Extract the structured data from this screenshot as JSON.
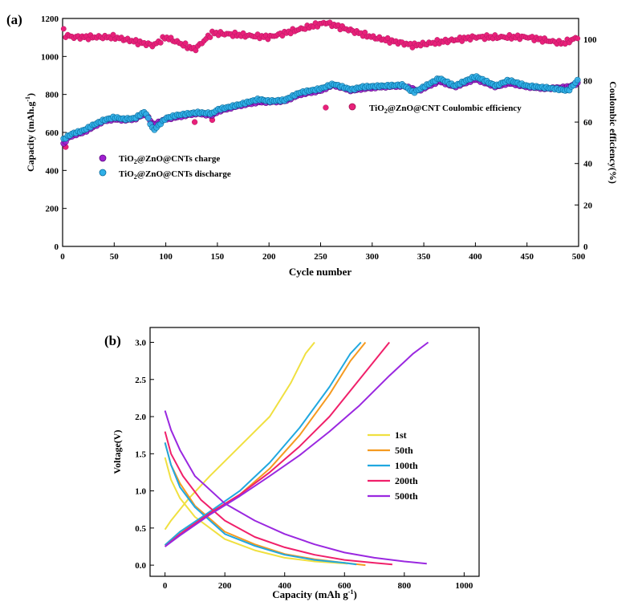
{
  "chart_data": [
    {
      "panel_label": "(a)",
      "type": "scatter",
      "xlabel": "Cycle number",
      "ylabel": "Capacity (mAh.g",
      "ylabel_sup": "-1",
      "ylabel_end": ")",
      "y2label": "Coulombic efficiency(%)",
      "xlim": [
        0,
        500
      ],
      "ylim": [
        0,
        1200
      ],
      "y2lim": [
        0,
        110
      ],
      "xticks": [
        0,
        50,
        100,
        150,
        200,
        250,
        300,
        350,
        400,
        450,
        500
      ],
      "yticks": [
        0,
        200,
        400,
        600,
        800,
        1000,
        1200
      ],
      "y2ticks": [
        0,
        20,
        40,
        60,
        80,
        100
      ],
      "grid": false,
      "series": [
        {
          "name": "TiO2@ZnO@CNTs charge",
          "name_parts": [
            "TiO",
            "2",
            "@ZnO@CNTs charge"
          ],
          "axis": "left",
          "color": "#a020d0",
          "points": [
            [
              0,
              530
            ],
            [
              5,
              570
            ],
            [
              10,
              585
            ],
            [
              20,
              600
            ],
            [
              30,
              630
            ],
            [
              40,
              660
            ],
            [
              50,
              670
            ],
            [
              60,
              665
            ],
            [
              70,
              670
            ],
            [
              80,
              700
            ],
            [
              88,
              640
            ],
            [
              100,
              670
            ],
            [
              110,
              680
            ],
            [
              130,
              700
            ],
            [
              145,
              690
            ],
            [
              150,
              710
            ],
            [
              170,
              740
            ],
            [
              190,
              760
            ],
            [
              200,
              760
            ],
            [
              215,
              765
            ],
            [
              230,
              800
            ],
            [
              250,
              820
            ],
            [
              262,
              850
            ],
            [
              280,
              820
            ],
            [
              290,
              830
            ],
            [
              310,
              840
            ],
            [
              330,
              845
            ],
            [
              345,
              820
            ],
            [
              365,
              870
            ],
            [
              380,
              840
            ],
            [
              400,
              880
            ],
            [
              420,
              840
            ],
            [
              432,
              860
            ],
            [
              450,
              840
            ],
            [
              470,
              830
            ],
            [
              490,
              840
            ],
            [
              500,
              860
            ]
          ]
        },
        {
          "name": "TiO2@ZnO@CNTs discharge",
          "name_parts": [
            "TiO",
            "2",
            "@ZnO@CNTs discharge"
          ],
          "axis": "left",
          "color": "#30b0e8",
          "points": [
            [
              0,
              560
            ],
            [
              5,
              580
            ],
            [
              10,
              595
            ],
            [
              20,
              610
            ],
            [
              30,
              640
            ],
            [
              40,
              665
            ],
            [
              50,
              680
            ],
            [
              60,
              670
            ],
            [
              70,
              675
            ],
            [
              80,
              710
            ],
            [
              88,
              610
            ],
            [
              100,
              675
            ],
            [
              110,
              690
            ],
            [
              130,
              705
            ],
            [
              145,
              700
            ],
            [
              150,
              720
            ],
            [
              170,
              745
            ],
            [
              190,
              775
            ],
            [
              200,
              765
            ],
            [
              215,
              770
            ],
            [
              230,
              810
            ],
            [
              250,
              830
            ],
            [
              262,
              855
            ],
            [
              280,
              825
            ],
            [
              290,
              840
            ],
            [
              310,
              845
            ],
            [
              330,
              850
            ],
            [
              340,
              810
            ],
            [
              365,
              885
            ],
            [
              380,
              845
            ],
            [
              400,
              895
            ],
            [
              420,
              845
            ],
            [
              432,
              875
            ],
            [
              450,
              845
            ],
            [
              470,
              835
            ],
            [
              490,
              820
            ],
            [
              500,
              880
            ]
          ]
        },
        {
          "name": "TiO2@ZnO@CNT Coulombic efficiency",
          "name_parts": [
            "TiO",
            "2",
            "@ZnO@CNT Coulombic efficiency"
          ],
          "axis": "right",
          "color": "#e8207a",
          "points": [
            [
              0,
              105
            ],
            [
              3,
              102
            ],
            [
              10,
              101
            ],
            [
              50,
              101
            ],
            [
              88,
              97
            ],
            [
              100,
              101
            ],
            [
              128,
              95
            ],
            [
              145,
              103
            ],
            [
              200,
              101
            ],
            [
              255,
              108
            ],
            [
              300,
              101
            ],
            [
              340,
              97
            ],
            [
              400,
              101
            ],
            [
              450,
              101
            ],
            [
              485,
              98
            ],
            [
              500,
              101
            ]
          ],
          "outlier_points": [
            [
              3,
              48
            ],
            [
              88,
              57
            ],
            [
              128,
              60
            ],
            [
              145,
              61
            ],
            [
              255,
              67
            ]
          ]
        }
      ]
    },
    {
      "panel_label": "(b)",
      "type": "line",
      "xlabel": "Capacity (mAh g",
      "xlabel_sup": "-1",
      "xlabel_end": ")",
      "ylabel": "Voltage(V)",
      "xlim": [
        -50,
        1050
      ],
      "ylim": [
        -0.15,
        3.2
      ],
      "xticks": [
        0,
        200,
        400,
        600,
        800,
        1000
      ],
      "yticks": [
        0.0,
        0.5,
        1.0,
        1.5,
        2.0,
        2.5,
        3.0
      ],
      "ytick_labels": [
        "0.0",
        "0.5",
        "1.0",
        "1.5",
        "2.0",
        "2.5",
        "3.0"
      ],
      "grid": false,
      "series": [
        {
          "name": "1st",
          "color": "#f0e040",
          "discharge": [
            [
              0,
              1.45
            ],
            [
              20,
              1.15
            ],
            [
              50,
              0.9
            ],
            [
              100,
              0.65
            ],
            [
              200,
              0.35
            ],
            [
              300,
              0.2
            ],
            [
              400,
              0.1
            ],
            [
              500,
              0.05
            ],
            [
              610,
              0.02
            ]
          ],
          "charge": [
            [
              0,
              0.48
            ],
            [
              20,
              0.6
            ],
            [
              80,
              0.9
            ],
            [
              150,
              1.2
            ],
            [
              250,
              1.6
            ],
            [
              350,
              2.0
            ],
            [
              420,
              2.45
            ],
            [
              470,
              2.85
            ],
            [
              500,
              3.0
            ]
          ]
        },
        {
          "name": "50th",
          "color": "#f59a20",
          "discharge": [
            [
              0,
              1.65
            ],
            [
              20,
              1.35
            ],
            [
              50,
              1.1
            ],
            [
              100,
              0.8
            ],
            [
              200,
              0.45
            ],
            [
              300,
              0.28
            ],
            [
              400,
              0.15
            ],
            [
              500,
              0.08
            ],
            [
              600,
              0.03
            ],
            [
              670,
              0.0
            ]
          ],
          "charge": [
            [
              0,
              0.27
            ],
            [
              50,
              0.45
            ],
            [
              150,
              0.7
            ],
            [
              250,
              0.95
            ],
            [
              350,
              1.3
            ],
            [
              450,
              1.75
            ],
            [
              550,
              2.3
            ],
            [
              620,
              2.75
            ],
            [
              670,
              3.0
            ]
          ]
        },
        {
          "name": "100th",
          "color": "#20a8e0",
          "discharge": [
            [
              0,
              1.65
            ],
            [
              20,
              1.35
            ],
            [
              50,
              1.05
            ],
            [
              100,
              0.78
            ],
            [
              200,
              0.42
            ],
            [
              300,
              0.26
            ],
            [
              400,
              0.14
            ],
            [
              500,
              0.07
            ],
            [
              600,
              0.03
            ],
            [
              640,
              0.01
            ]
          ],
          "charge": [
            [
              0,
              0.27
            ],
            [
              50,
              0.45
            ],
            [
              150,
              0.72
            ],
            [
              250,
              1.0
            ],
            [
              350,
              1.38
            ],
            [
              450,
              1.85
            ],
            [
              550,
              2.4
            ],
            [
              620,
              2.85
            ],
            [
              655,
              3.0
            ]
          ]
        },
        {
          "name": "200th",
          "color": "#f0206a",
          "discharge": [
            [
              0,
              1.8
            ],
            [
              20,
              1.5
            ],
            [
              60,
              1.2
            ],
            [
              120,
              0.88
            ],
            [
              200,
              0.6
            ],
            [
              300,
              0.38
            ],
            [
              400,
              0.24
            ],
            [
              500,
              0.14
            ],
            [
              600,
              0.07
            ],
            [
              700,
              0.03
            ],
            [
              760,
              0.01
            ]
          ],
          "charge": [
            [
              0,
              0.25
            ],
            [
              50,
              0.42
            ],
            [
              150,
              0.7
            ],
            [
              250,
              0.95
            ],
            [
              350,
              1.25
            ],
            [
              450,
              1.6
            ],
            [
              550,
              2.0
            ],
            [
              650,
              2.5
            ],
            [
              720,
              2.85
            ],
            [
              750,
              3.0
            ]
          ]
        },
        {
          "name": "500th",
          "color": "#9a28e0",
          "discharge": [
            [
              0,
              2.08
            ],
            [
              20,
              1.82
            ],
            [
              50,
              1.55
            ],
            [
              100,
              1.2
            ],
            [
              200,
              0.83
            ],
            [
              300,
              0.6
            ],
            [
              400,
              0.42
            ],
            [
              500,
              0.28
            ],
            [
              600,
              0.17
            ],
            [
              700,
              0.1
            ],
            [
              800,
              0.05
            ],
            [
              875,
              0.02
            ]
          ],
          "charge": [
            [
              0,
              0.25
            ],
            [
              50,
              0.4
            ],
            [
              150,
              0.68
            ],
            [
              250,
              0.93
            ],
            [
              350,
              1.2
            ],
            [
              450,
              1.48
            ],
            [
              550,
              1.8
            ],
            [
              650,
              2.15
            ],
            [
              750,
              2.55
            ],
            [
              830,
              2.85
            ],
            [
              880,
              3.0
            ]
          ]
        }
      ]
    }
  ]
}
